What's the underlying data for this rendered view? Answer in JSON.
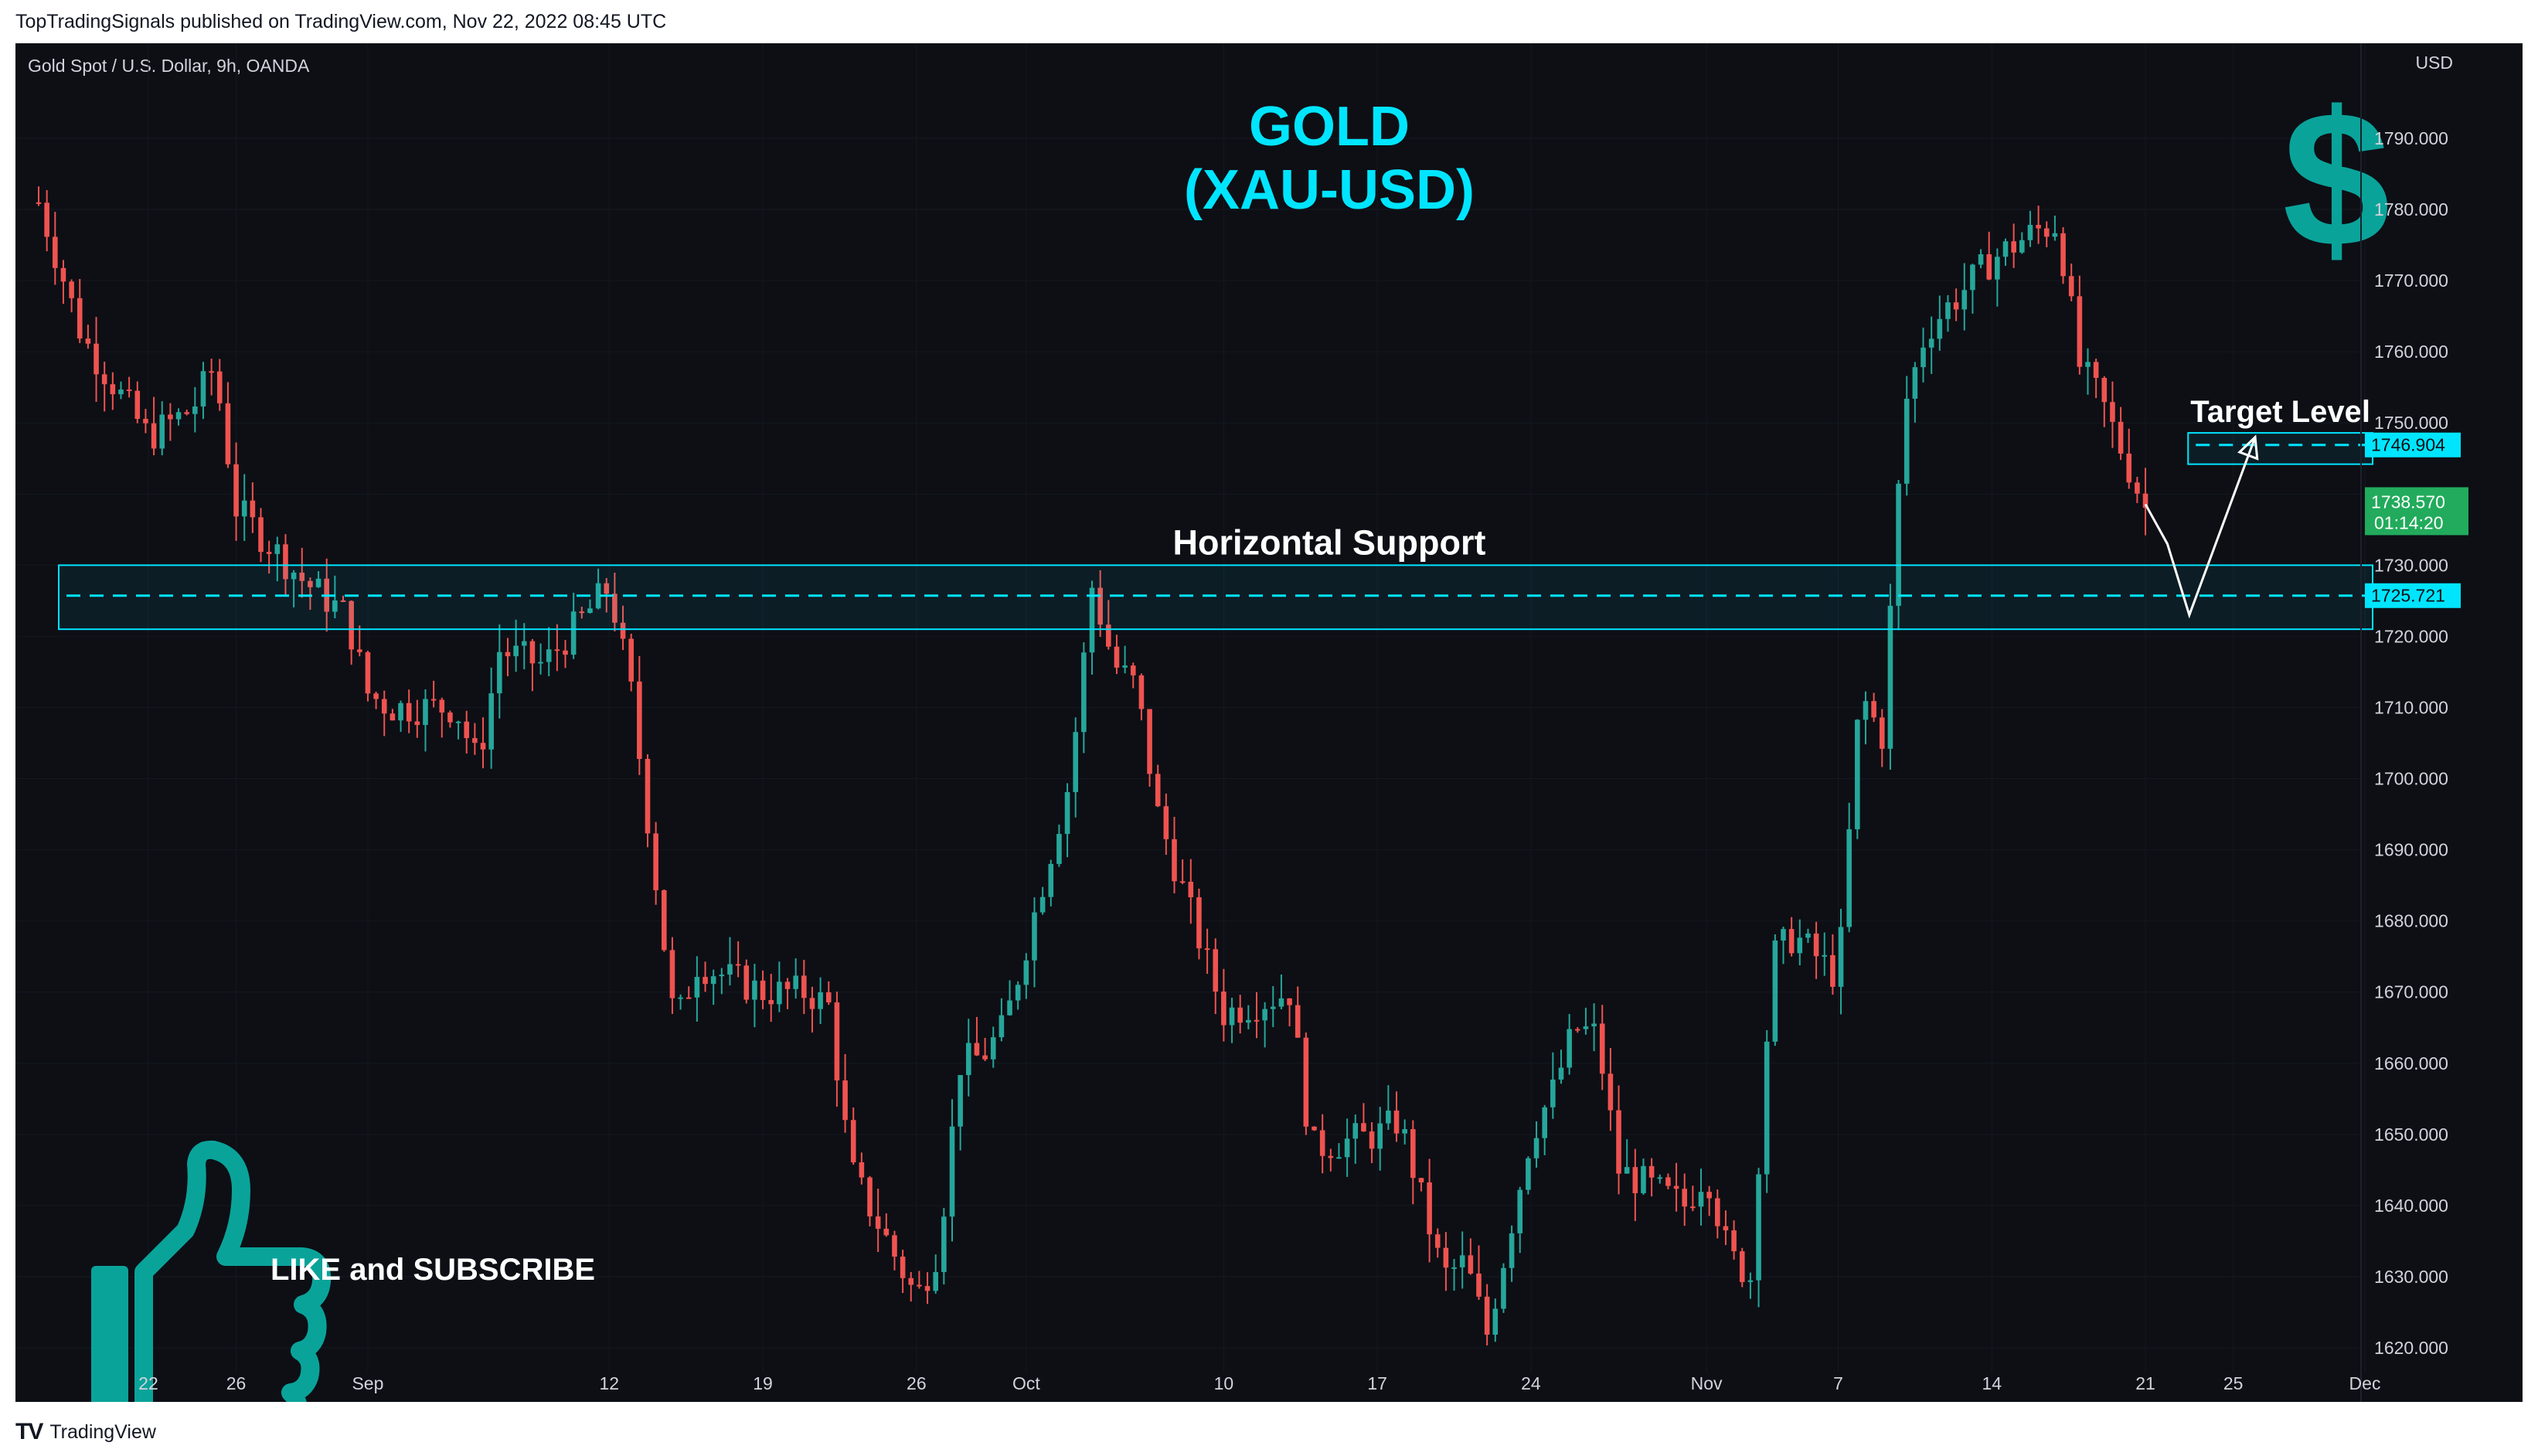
{
  "header": {
    "publisher": "TopTradingSignals published on TradingView.com, Nov 22, 2022 08:45 UTC"
  },
  "chart_header": {
    "symbol": "Gold Spot / U.S. Dollar, 9h, OANDA",
    "currency": "USD"
  },
  "annotations": {
    "title_line1": "GOLD",
    "title_line2": "(XAU-USD)",
    "support_label": "Horizontal Support",
    "target_label": "Target Level",
    "cta_label": "LIKE and SUBSCRIBE",
    "dollar_icon": "dollar-icon",
    "thumb_icon": "thumbs-up-icon"
  },
  "price_labels": {
    "target": "1746.904",
    "last": "1738.570",
    "countdown": "01:14:20",
    "support": "1725.721"
  },
  "colors": {
    "up": "#26a69a",
    "down": "#ef5350",
    "accent": "#00e5ff",
    "background": "#0d0f15",
    "last_price": "#22ab5c"
  },
  "footer": {
    "brand": "TradingView"
  },
  "chart_data": {
    "type": "candlestick",
    "y_ticks": [
      "1790.000",
      "1780.000",
      "1770.000",
      "1760.000",
      "1750.000",
      "1740.000",
      "1730.000",
      "1720.000",
      "1710.000",
      "1700.000",
      "1690.000",
      "1680.000",
      "1670.000",
      "1660.000",
      "1650.000",
      "1640.000",
      "1630.000",
      "1620.000"
    ],
    "ylim": [
      1616,
      1800
    ],
    "x_ticks": [
      {
        "label": "22",
        "x": "2022-08-22"
      },
      {
        "label": "26",
        "x": "2022-08-26"
      },
      {
        "label": "Sep",
        "x": "2022-09-01"
      },
      {
        "label": "12",
        "x": "2022-09-12"
      },
      {
        "label": "19",
        "x": "2022-09-19"
      },
      {
        "label": "26",
        "x": "2022-09-26"
      },
      {
        "label": "Oct",
        "x": "2022-10-01"
      },
      {
        "label": "10",
        "x": "2022-10-10"
      },
      {
        "label": "17",
        "x": "2022-10-17"
      },
      {
        "label": "24",
        "x": "2022-10-24"
      },
      {
        "label": "Nov",
        "x": "2022-11-01"
      },
      {
        "label": "7",
        "x": "2022-11-07"
      },
      {
        "label": "14",
        "x": "2022-11-14"
      },
      {
        "label": "21",
        "x": "2022-11-21"
      },
      {
        "label": "25",
        "x": "2022-11-25"
      },
      {
        "label": "Dec",
        "x": "2022-12-01"
      }
    ],
    "xlim": [
      "2022-08-17",
      "2022-12-01"
    ],
    "support_zone": [
      1721,
      1730
    ],
    "support_level": 1725.721,
    "target_zone": [
      1744.2,
      1748.6
    ],
    "target_level": 1746.904,
    "last_price": 1738.57,
    "close_path": [
      [
        "2022-08-17",
        1781
      ],
      [
        "2022-08-19",
        1762
      ],
      [
        "2022-08-22",
        1748
      ],
      [
        "2022-08-24",
        1752
      ],
      [
        "2022-08-25",
        1758
      ],
      [
        "2022-08-26",
        1738
      ],
      [
        "2022-08-29",
        1728
      ],
      [
        "2022-08-31",
        1723
      ],
      [
        "2022-09-01",
        1712
      ],
      [
        "2022-09-02",
        1710
      ],
      [
        "2022-09-05",
        1710
      ],
      [
        "2022-09-06",
        1702
      ],
      [
        "2022-09-07",
        1718
      ],
      [
        "2022-09-09",
        1716
      ],
      [
        "2022-09-12",
        1727
      ],
      [
        "2022-09-13",
        1712
      ],
      [
        "2022-09-15",
        1665
      ],
      [
        "2022-09-16",
        1674
      ],
      [
        "2022-09-19",
        1670
      ],
      [
        "2022-09-21",
        1670
      ],
      [
        "2022-09-22",
        1668
      ],
      [
        "2022-09-23",
        1645
      ],
      [
        "2022-09-26",
        1627
      ],
      [
        "2022-09-27",
        1634
      ],
      [
        "2022-09-28",
        1660
      ],
      [
        "2022-09-29",
        1661
      ],
      [
        "2022-09-30",
        1665
      ],
      [
        "2022-10-03",
        1700
      ],
      [
        "2022-10-04",
        1727
      ],
      [
        "2022-10-05",
        1716
      ],
      [
        "2022-10-06",
        1713
      ],
      [
        "2022-10-07",
        1695
      ],
      [
        "2022-10-10",
        1667
      ],
      [
        "2022-10-11",
        1668
      ],
      [
        "2022-10-13",
        1670
      ],
      [
        "2022-10-14",
        1648
      ],
      [
        "2022-10-17",
        1650
      ],
      [
        "2022-10-18",
        1652
      ],
      [
        "2022-10-20",
        1630
      ],
      [
        "2022-10-21",
        1632
      ],
      [
        "2022-10-22",
        1622
      ],
      [
        "2022-10-24",
        1650
      ],
      [
        "2022-10-25",
        1656
      ],
      [
        "2022-10-26",
        1665
      ],
      [
        "2022-10-27",
        1664
      ],
      [
        "2022-10-28",
        1645
      ],
      [
        "2022-10-31",
        1640
      ],
      [
        "2022-11-01",
        1645
      ],
      [
        "2022-11-02",
        1633
      ],
      [
        "2022-11-03",
        1630
      ],
      [
        "2022-11-04",
        1675
      ],
      [
        "2022-11-05",
        1678
      ],
      [
        "2022-11-07",
        1672
      ],
      [
        "2022-11-08",
        1712
      ],
      [
        "2022-11-09",
        1706
      ],
      [
        "2022-11-10",
        1752
      ],
      [
        "2022-11-11",
        1763
      ],
      [
        "2022-11-14",
        1773
      ],
      [
        "2022-11-15",
        1775
      ],
      [
        "2022-11-16",
        1777
      ],
      [
        "2022-11-17",
        1778
      ],
      [
        "2022-11-18",
        1758
      ],
      [
        "2022-11-19",
        1753
      ],
      [
        "2022-11-21",
        1738
      ]
    ],
    "projection": [
      [
        "2022-11-21",
        1738.57
      ],
      [
        "2022-11-22",
        1733
      ],
      [
        "2022-11-23",
        1723
      ],
      [
        "2022-11-26",
        1748
      ]
    ]
  }
}
